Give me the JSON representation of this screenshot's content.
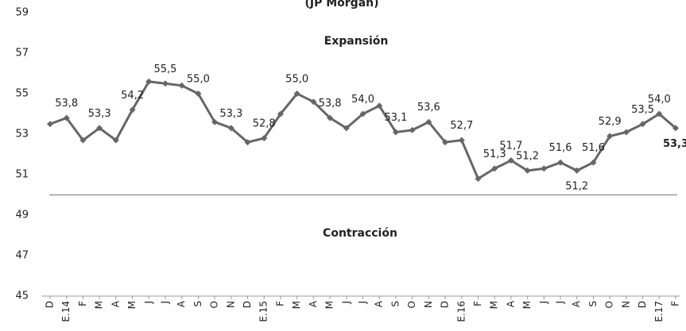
{
  "chart_data": {
    "type": "line",
    "title": "(JP Morgan)",
    "annotations": [
      "Expansión",
      "Contracción"
    ],
    "categories": [
      "D",
      "E.14",
      "F",
      "M",
      "A",
      "M",
      "J",
      "J",
      "A",
      "S",
      "O",
      "N",
      "D",
      "E.15",
      "F",
      "M",
      "A",
      "M",
      "J",
      "J",
      "A",
      "S",
      "O",
      "N",
      "D",
      "E.16",
      "F",
      "M",
      "A",
      "M",
      "J",
      "J",
      "A",
      "S",
      "O",
      "N",
      "D",
      "E.17",
      "F"
    ],
    "values": [
      53.5,
      53.8,
      52.7,
      53.3,
      52.7,
      54.2,
      55.6,
      55.5,
      55.4,
      55.0,
      53.6,
      53.3,
      52.6,
      52.8,
      54.0,
      55.0,
      54.6,
      53.8,
      53.3,
      54.0,
      54.4,
      53.1,
      53.2,
      53.6,
      52.6,
      52.7,
      50.8,
      51.3,
      51.7,
      51.2,
      51.3,
      51.6,
      51.2,
      51.6,
      52.9,
      53.1,
      53.5,
      54.0,
      53.3
    ],
    "value_labels": [
      null,
      "53,8",
      null,
      "53,3",
      null,
      "54,2",
      null,
      "55,5",
      null,
      "55,0",
      null,
      "53,3",
      null,
      "52,8",
      null,
      "55,0",
      null,
      "53,8",
      null,
      "54,0",
      null,
      "53,1",
      null,
      "53,6",
      null,
      "52,7",
      null,
      "51,3",
      "51,7",
      "51,2",
      null,
      "51,6",
      "51,2",
      "51,6",
      "52,9",
      null,
      "53,5",
      "54,0",
      "53,3"
    ],
    "color": "#666666",
    "reference_line": 50,
    "ylim": [
      45,
      59
    ],
    "yticks": [
      45,
      47,
      49,
      51,
      53,
      55,
      57,
      59
    ],
    "grid": false
  }
}
